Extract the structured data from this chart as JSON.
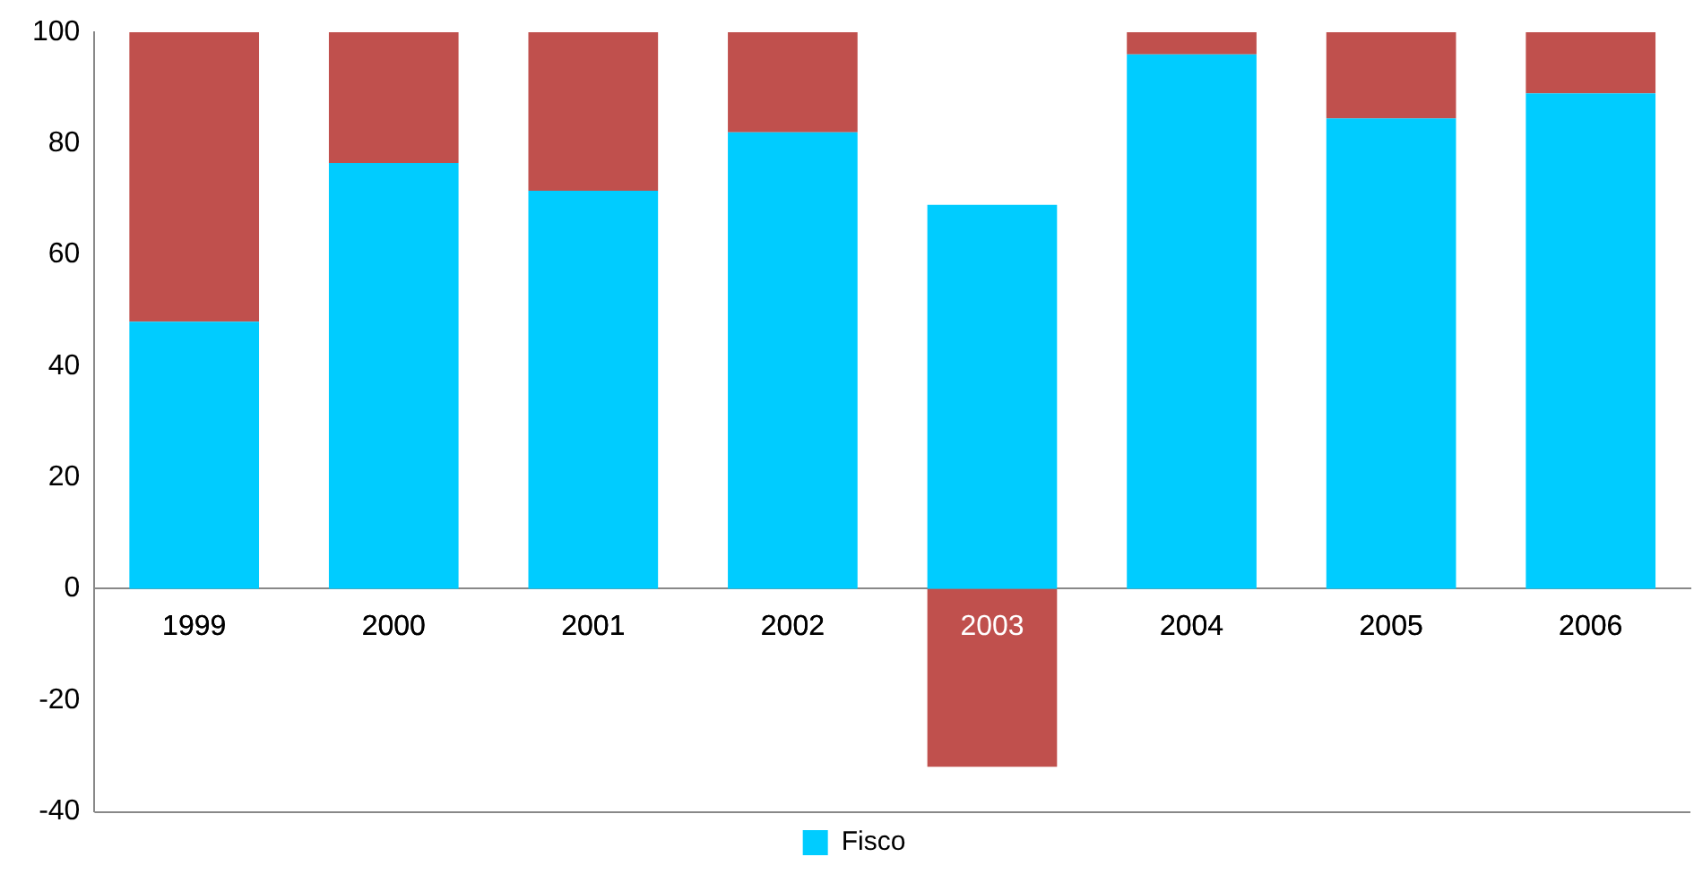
{
  "chart_data": {
    "type": "bar",
    "stacked": true,
    "categories": [
      "1999",
      "2000",
      "2001",
      "2002",
      "2003",
      "2004",
      "2005",
      "2006"
    ],
    "series": [
      {
        "name": "Fisco",
        "color": "#00ccff",
        "values": [
          48,
          76.5,
          71.5,
          82,
          69,
          96,
          84.5,
          89
        ]
      },
      {
        "color": "#c0504d",
        "values": [
          52,
          23.5,
          28.5,
          18,
          -32,
          4,
          15.5,
          11
        ]
      }
    ],
    "ylim": [
      -40,
      100
    ],
    "yticks": [
      -40,
      -20,
      0,
      20,
      40,
      60,
      80,
      100
    ],
    "legend": "bottom"
  }
}
